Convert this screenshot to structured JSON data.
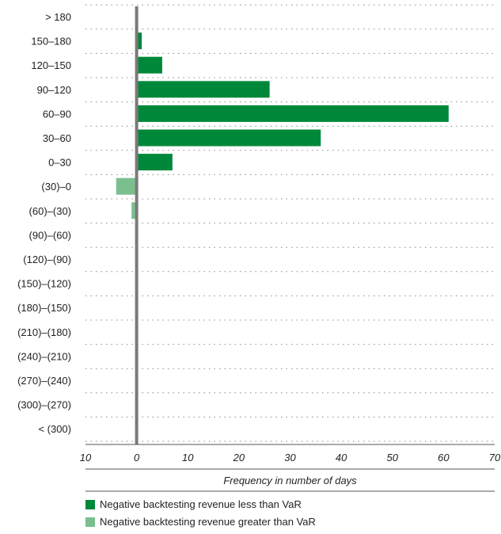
{
  "chart_data": {
    "type": "bar",
    "orientation": "horizontal",
    "categories": [
      "> 180",
      "150–180",
      "120–150",
      "90–120",
      "60–90",
      "30–60",
      "0–30",
      "(30)–0",
      "(60)–(30)",
      "(90)–(60)",
      "(120)–(90)",
      "(150)–(120)",
      "(180)–(150)",
      "(210)–(180)",
      "(240)–(210)",
      "(270)–(240)",
      "(300)–(270)",
      "< (300)"
    ],
    "series": [
      {
        "name": "Negative backtesting revenue less than VaR",
        "color": "#00883a",
        "values": [
          0,
          1,
          5,
          26,
          61,
          36,
          7,
          0,
          0,
          0,
          0,
          0,
          0,
          0,
          0,
          0,
          0,
          0
        ]
      },
      {
        "name": "Negative backtesting revenue greater than VaR",
        "color": "#7bbf8e",
        "values": [
          0,
          0,
          0,
          0,
          0,
          0,
          0,
          -4,
          -1,
          0,
          0,
          0,
          0,
          0,
          0,
          0,
          0,
          0
        ]
      }
    ],
    "xlim": [
      -10,
      70
    ],
    "xticks": [
      -10,
      0,
      10,
      20,
      30,
      40,
      50,
      60,
      70
    ],
    "xtick_labels": [
      "10",
      "0",
      "10",
      "20",
      "30",
      "40",
      "50",
      "60",
      "70"
    ],
    "xlabel": "Frequency in number of days",
    "ylabel": "",
    "title": "",
    "grid": "horizontal dotted",
    "legend_position": "bottom-left"
  }
}
